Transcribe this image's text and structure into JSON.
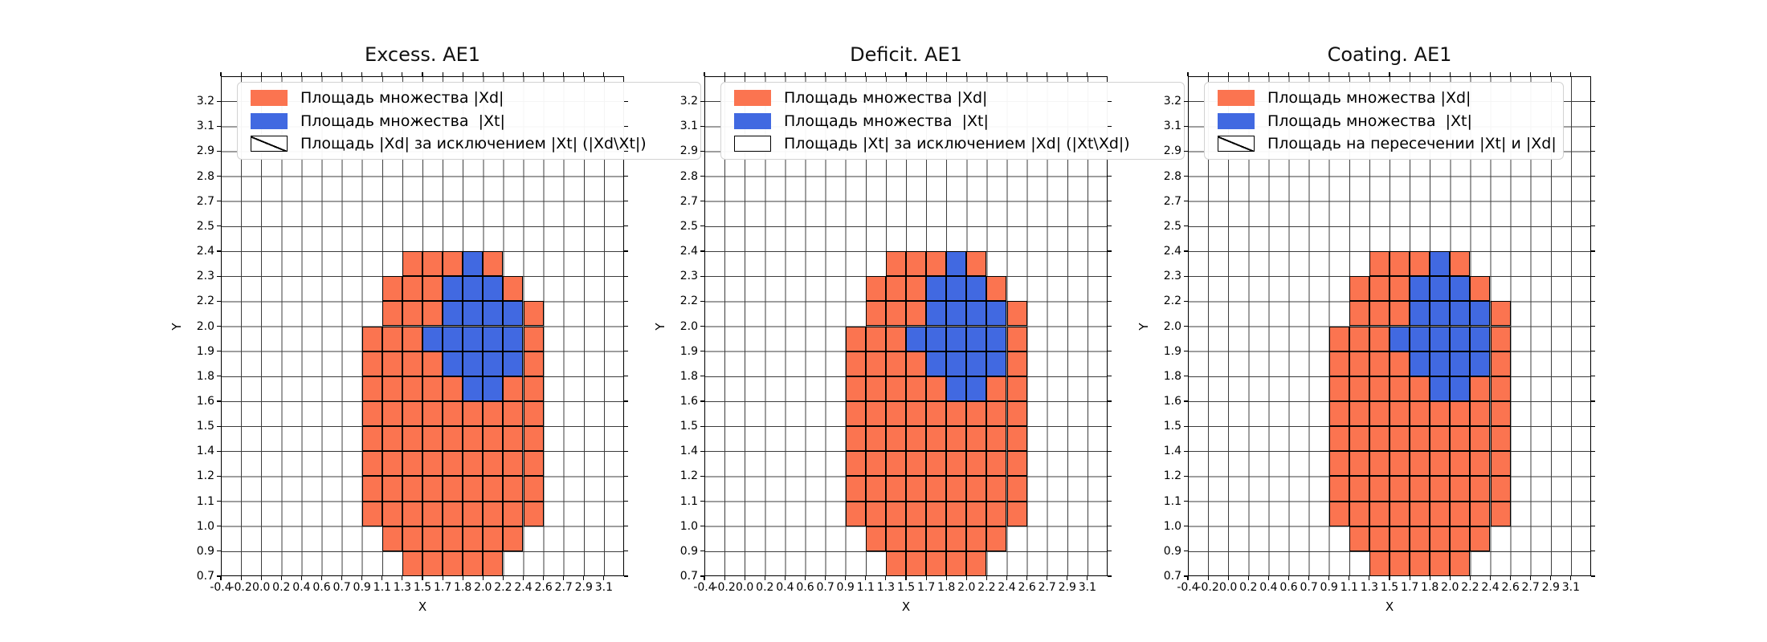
{
  "figure": {
    "background": "#ffffff"
  },
  "plots": [
    {
      "title": "Excess. AE1",
      "xlabel": "X",
      "ylabel": "Y",
      "hatch_target": "xd",
      "legend": [
        {
          "swatch": "xd",
          "label": "Площадь множества |Xd|"
        },
        {
          "swatch": "xt",
          "label": "Площадь множества  |Xt|"
        },
        {
          "swatch": "hatch",
          "label": "Площадь |Xd| за исключением |Xt| (|Xd\\Xt|)"
        }
      ]
    },
    {
      "title": "Deficit. AE1",
      "xlabel": "X",
      "ylabel": "Y",
      "hatch_target": "none",
      "legend": [
        {
          "swatch": "xd",
          "label": "Площадь множества |Xd|"
        },
        {
          "swatch": "xt",
          "label": "Площадь множества  |Xt|"
        },
        {
          "swatch": "empty",
          "label": "Площадь |Xt| за исключением |Xd| (|Xt\\Xd|)"
        }
      ]
    },
    {
      "title": "Coating. AE1",
      "xlabel": "X",
      "ylabel": "Y",
      "hatch_target": "xt",
      "legend": [
        {
          "swatch": "xd",
          "label": "Площадь множества |Xd|"
        },
        {
          "swatch": "xt",
          "label": "Площадь множества  |Xt|"
        },
        {
          "swatch": "hatch",
          "label": "Площадь на пересечении |Xt| и |Xd|"
        }
      ]
    }
  ],
  "chart_data": {
    "type": "heatmap",
    "description": "Three identical cell-grid set plots; orange cells = set Xd, blue cells = set Xt (Xt lies fully inside Xd). Plot 1 hatches Xd cells (Xd\\Xt visible), plot 2 has no hatching (Xt\\Xd is empty), plot 3 hatches Xt cells (intersection).",
    "grid_cols": 20,
    "grid_rows": 20,
    "x_ticks": [
      "-0.4",
      "-0.2",
      "0.0",
      "0.2",
      "0.4",
      "0.6",
      "0.7",
      "0.9",
      "1.1",
      "1.3",
      "1.5",
      "1.7",
      "1.8",
      "2.0",
      "2.2",
      "2.4",
      "2.6",
      "2.7",
      "2.9",
      "3.1"
    ],
    "y_ticks": [
      "3.2",
      "3.1",
      "2.9",
      "2.8",
      "2.7",
      "2.5",
      "2.4",
      "2.3",
      "2.2",
      "2.0",
      "1.9",
      "1.8",
      "1.6",
      "1.5",
      "1.4",
      "1.2",
      "1.1",
      "1.0",
      "0.9",
      "0.7"
    ],
    "x_tick_side": "labels sit on grid columns 0..19, left spine = -0.4, right spine unlabeled",
    "y_tick_side": "labels sit on grid lines 1..20, top spine unlabeled, bottom spine = 0.7",
    "xd_rows": [
      [
        7,
        9,
        13
      ],
      [
        8,
        8,
        14
      ],
      [
        9,
        8,
        15
      ],
      [
        10,
        7,
        15
      ],
      [
        11,
        7,
        15
      ],
      [
        12,
        7,
        15
      ],
      [
        13,
        7,
        15
      ],
      [
        14,
        7,
        15
      ],
      [
        15,
        7,
        15
      ],
      [
        16,
        7,
        15
      ],
      [
        17,
        7,
        15
      ],
      [
        18,
        8,
        14
      ],
      [
        19,
        9,
        13
      ]
    ],
    "xt_rows": [
      [
        7,
        12,
        12
      ],
      [
        8,
        11,
        13
      ],
      [
        9,
        11,
        14
      ],
      [
        10,
        10,
        14
      ],
      [
        11,
        11,
        14
      ],
      [
        12,
        12,
        13
      ]
    ],
    "series": [
      {
        "name": "Xd",
        "color": "#FB7450"
      },
      {
        "name": "Xt",
        "color": "#4169E1"
      }
    ],
    "legend_position": "upper left, overflowing onto the next subplot",
    "grid_on": true
  },
  "colors": {
    "xd": "#FB7450",
    "xt": "#4169E1",
    "grid_line": "#3d3d3d",
    "spine": "#000000",
    "cell_edge": "#000000",
    "legend_border": "#d2d2d2",
    "text": "#000000"
  }
}
